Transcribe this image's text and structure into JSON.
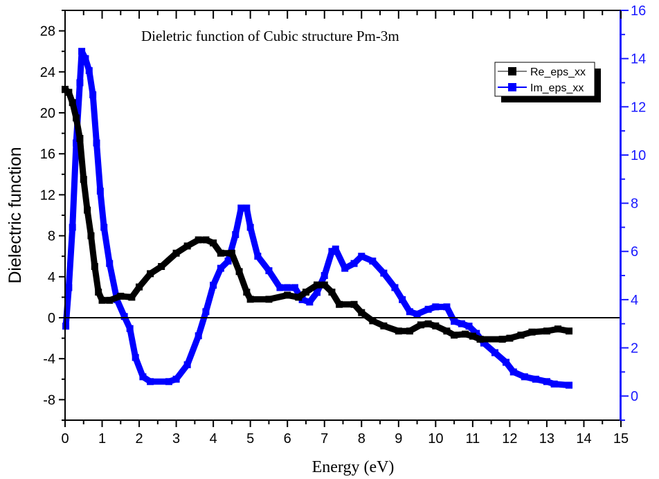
{
  "chart_data": {
    "type": "line",
    "title": "Dieletric function of Cubic structure Pm-3m",
    "xlabel": "Energy (eV)",
    "ylabel": "Dielectric function",
    "xlim": [
      0,
      15
    ],
    "ylim_left": [
      -10,
      30
    ],
    "ylim_right": [
      -1,
      16
    ],
    "x_ticks": [
      0,
      1,
      2,
      3,
      4,
      5,
      6,
      7,
      8,
      9,
      10,
      11,
      12,
      13,
      14,
      15
    ],
    "y_ticks_left": [
      -8,
      -4,
      0,
      4,
      8,
      12,
      16,
      20,
      24,
      28
    ],
    "y_ticks_right": [
      0,
      2,
      4,
      6,
      8,
      10,
      12,
      14,
      16
    ],
    "grid": false,
    "zero_line": true,
    "legend_position": "top-right",
    "colors": {
      "re": "#000000",
      "im": "#0000ff",
      "right_axis": "#1a1aff"
    },
    "series": [
      {
        "name": "Re_eps_xx",
        "axis": "left",
        "x": [
          0,
          0.1,
          0.2,
          0.3,
          0.4,
          0.5,
          0.6,
          0.7,
          0.8,
          0.9,
          1.0,
          1.2,
          1.5,
          1.8,
          2.0,
          2.3,
          2.6,
          3.0,
          3.3,
          3.6,
          3.8,
          4.0,
          4.2,
          4.5,
          4.7,
          4.9,
          5.0,
          5.5,
          6.0,
          6.3,
          6.5,
          6.8,
          7.0,
          7.2,
          7.4,
          7.8,
          8.0,
          8.3,
          8.6,
          9.0,
          9.3,
          9.6,
          9.8,
          10.0,
          10.3,
          10.5,
          10.8,
          11.0,
          11.2,
          11.8,
          12.0,
          12.3,
          12.6,
          13.0,
          13.3,
          13.6
        ],
        "y": [
          22.3,
          22,
          21,
          19.5,
          17.5,
          13.5,
          10.5,
          8,
          5,
          2.5,
          1.7,
          1.7,
          2.1,
          2,
          3,
          4.3,
          5,
          6.3,
          7,
          7.6,
          7.6,
          7.3,
          6.3,
          6.3,
          4.5,
          2.5,
          1.8,
          1.8,
          2.2,
          2,
          2.5,
          3.2,
          3.2,
          2.5,
          1.3,
          1.3,
          0.5,
          -0.3,
          -0.8,
          -1.3,
          -1.3,
          -0.7,
          -0.6,
          -0.8,
          -1.3,
          -1.7,
          -1.6,
          -1.8,
          -2.1,
          -2.1,
          -2.0,
          -1.7,
          -1.4,
          -1.3,
          -1.1,
          -1.3
        ]
      },
      {
        "name": "Im_eps_xx",
        "axis": "right",
        "x": [
          0.02,
          0.1,
          0.2,
          0.3,
          0.4,
          0.45,
          0.55,
          0.65,
          0.75,
          0.85,
          0.95,
          1.05,
          1.2,
          1.4,
          1.6,
          1.75,
          1.9,
          2.1,
          2.3,
          2.8,
          3.0,
          3.3,
          3.6,
          3.8,
          4.0,
          4.2,
          4.4,
          4.6,
          4.75,
          4.9,
          5.0,
          5.2,
          5.5,
          5.8,
          6.0,
          6.2,
          6.4,
          6.6,
          6.8,
          7.0,
          7.2,
          7.3,
          7.55,
          7.8,
          8.0,
          8.3,
          8.6,
          8.9,
          9.1,
          9.3,
          9.5,
          9.8,
          10.0,
          10.3,
          10.5,
          10.7,
          10.9,
          11.1,
          11.3,
          11.6,
          11.9,
          12.1,
          12.4,
          12.7,
          13.0,
          13.2,
          13.6
        ],
        "y": [
          2.9,
          4.5,
          7,
          10.5,
          13,
          14.3,
          14,
          13.5,
          12.5,
          10.5,
          8.5,
          7,
          5.5,
          4,
          3.3,
          2.8,
          1.6,
          0.8,
          0.6,
          0.6,
          0.7,
          1.3,
          2.5,
          3.5,
          4.6,
          5.3,
          5.6,
          6.7,
          7.8,
          7.8,
          7,
          5.8,
          5.2,
          4.5,
          4.5,
          4.5,
          4.0,
          3.9,
          4.3,
          5.0,
          6,
          6.1,
          5.3,
          5.5,
          5.8,
          5.6,
          5.1,
          4.5,
          4,
          3.5,
          3.4,
          3.6,
          3.7,
          3.7,
          3.1,
          3.0,
          2.9,
          2.6,
          2.2,
          1.8,
          1.4,
          1.0,
          0.8,
          0.7,
          0.6,
          0.5,
          0.45
        ]
      }
    ]
  }
}
